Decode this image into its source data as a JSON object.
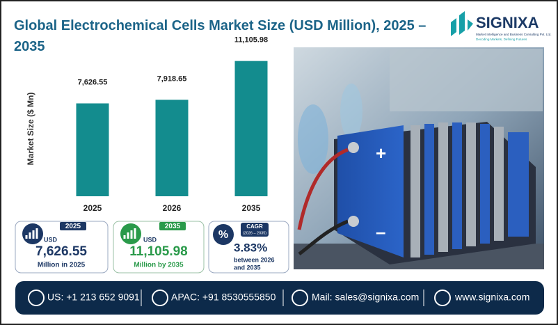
{
  "chart_data": {
    "type": "bar",
    "title": "Global Electrochemical Cells Market Size (USD Million), 2025 – 2035",
    "y_label": "Market Size ($ Mn)",
    "categories": [
      "2025",
      "2026",
      "2035"
    ],
    "values": [
      7626.55,
      7918.65,
      11105.98
    ],
    "value_labels": [
      "7,626.55",
      "7,918.65",
      "11,105.98"
    ],
    "color": "#138c8e",
    "ylim": [
      0,
      12000
    ]
  },
  "logo": {
    "name": "SIGNIXA",
    "tagline": "Market Intelligence and Business Consulting Pvt. Ltd.",
    "motto": "Decoding Markets, Defining Futures"
  },
  "cards": [
    {
      "currency": "USD",
      "caption": "Million in 2025"
    },
    {
      "currency": "USD",
      "caption": "Million by 2035"
    },
    {
      "badge": "CAGR",
      "period": "(2026 – 2035)",
      "value": "3.83%",
      "caption_1": "between 2026",
      "caption_2": "and 2035"
    }
  ],
  "footer": {
    "us": "US: +1 213 652 9091",
    "apac": "APAC: +91 8530555850",
    "mail": "Mail: sales@signixa.com",
    "web": "www.signixa.com"
  }
}
